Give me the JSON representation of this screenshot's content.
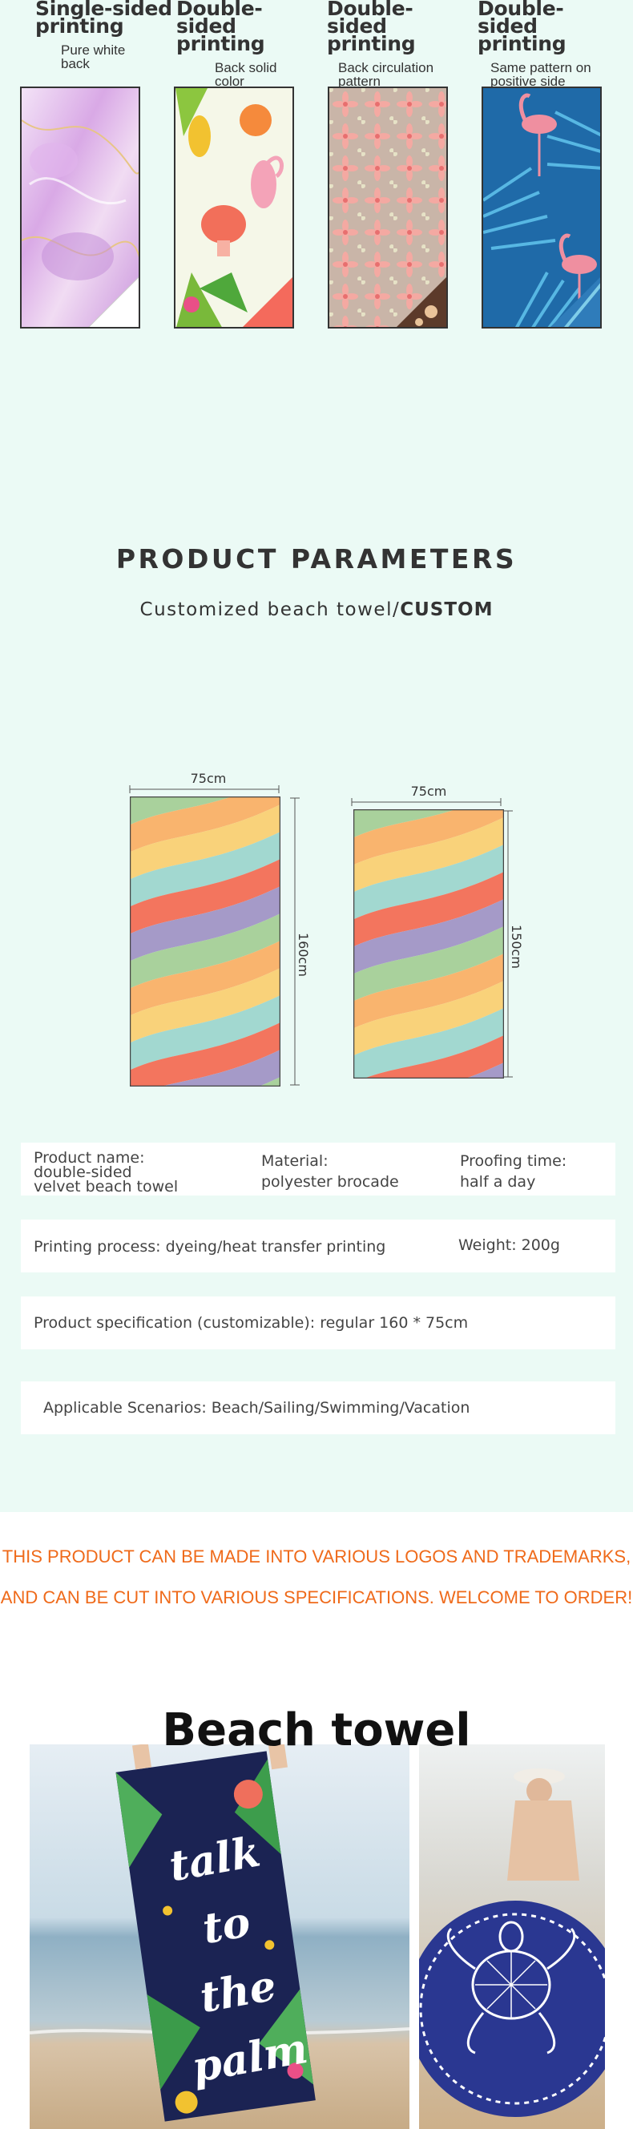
{
  "printing_types": [
    {
      "title": "Single-sided printing",
      "desc": "Pure white back"
    },
    {
      "title": "Double-sided printing",
      "desc": "Back solid color"
    },
    {
      "title": "Double-sided printing",
      "desc": "Back circulation pattern"
    },
    {
      "title": "Double-sided printing",
      "desc": "Same pattern on positive side"
    }
  ],
  "params": {
    "title": "PRODUCT PARAMETERS",
    "subtitle_plain": "Customized beach towel/",
    "subtitle_bold": "CUSTOM"
  },
  "dimensions": {
    "towel1": {
      "width": "75cm",
      "height": "160cm"
    },
    "towel2": {
      "width": "75cm",
      "height": "150cm"
    }
  },
  "details": {
    "product_name_label": "Product name:",
    "product_name_value_1": "double-sided",
    "product_name_value_2": "velvet beach towel",
    "material_label": "Material:",
    "material_value": "polyester brocade",
    "proofing_label": "Proofing time:",
    "proofing_value": "half a day",
    "printing_process": "Printing process: dyeing/heat transfer printing",
    "weight": "Weight: 200g",
    "specification": "Product specification (customizable): regular 160 * 75cm",
    "scenarios": "Applicable Scenarios: Beach/Sailing/Swimming/Vacation"
  },
  "promo": {
    "line1": "THIS PRODUCT CAN BE MADE INTO VARIOUS LOGOS AND TRADEMARKS,",
    "line2": "AND CAN BE CUT INTO VARIOUS SPECIFICATIONS. WELCOME TO ORDER!"
  },
  "beach": {
    "title": "Beach towel",
    "towel_text_1": "talk",
    "towel_text_2": "to the",
    "towel_text_3": "palm"
  },
  "colors": {
    "background": "#ebfaf5",
    "promo_text": "#ef6a1a",
    "stripes": [
      "#f9d27a",
      "#a2d8d0",
      "#f3755e",
      "#a59ac8",
      "#a9d19c",
      "#f9b46e"
    ]
  }
}
